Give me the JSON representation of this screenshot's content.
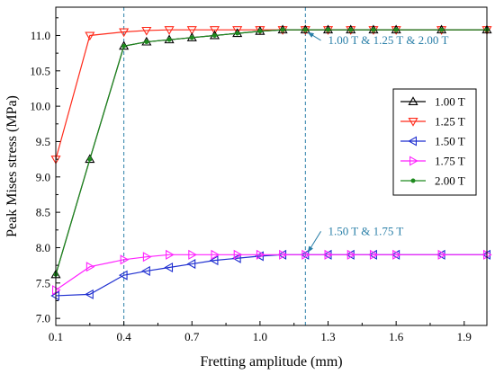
{
  "chart_data": {
    "type": "line",
    "xlabel": "Fretting amplitude (mm)",
    "ylabel": "Peak Mises stress (MPa)",
    "xlim": [
      0.1,
      2.0
    ],
    "ylim": [
      6.9,
      11.4
    ],
    "xticks": [
      0.1,
      0.4,
      0.7,
      1.0,
      1.3,
      1.6,
      1.9
    ],
    "yticks": [
      7.0,
      7.5,
      8.0,
      8.5,
      9.0,
      9.5,
      10.0,
      10.5,
      11.0
    ],
    "xtick_labels": [
      "0.1",
      "0.4",
      "0.7",
      "1.0",
      "1.3",
      "1.6",
      "1.9"
    ],
    "ytick_labels": [
      "7.0",
      "7.5",
      "8.0",
      "8.5",
      "9.0",
      "9.5",
      "10.0",
      "10.5",
      "11.0"
    ],
    "legend_position": "right",
    "grid": false,
    "series": [
      {
        "name": "1.00 T",
        "color": "#000000",
        "marker": "triangle-up",
        "x": [
          0.1,
          0.25,
          0.4,
          0.5,
          0.6,
          0.7,
          0.8,
          0.9,
          1.0,
          1.1,
          1.2,
          1.3,
          1.4,
          1.5,
          1.6,
          1.8,
          2.0
        ],
        "y": [
          7.62,
          9.25,
          10.85,
          10.91,
          10.94,
          10.97,
          11.0,
          11.03,
          11.06,
          11.08,
          11.08,
          11.08,
          11.08,
          11.08,
          11.08,
          11.08,
          11.08
        ]
      },
      {
        "name": "1.25 T",
        "color": "#ff2a1a",
        "marker": "triangle-down",
        "x": [
          0.1,
          0.25,
          0.4,
          0.5,
          0.6,
          0.7,
          0.8,
          0.9,
          1.0,
          1.1,
          1.2,
          1.3,
          1.4,
          1.5,
          1.6,
          1.8,
          2.0
        ],
        "y": [
          9.25,
          11.0,
          11.05,
          11.07,
          11.08,
          11.08,
          11.08,
          11.08,
          11.08,
          11.08,
          11.08,
          11.08,
          11.08,
          11.08,
          11.08,
          11.08,
          11.08
        ]
      },
      {
        "name": "1.50 T",
        "color": "#1f2fd0",
        "marker": "triangle-left",
        "x": [
          0.1,
          0.25,
          0.4,
          0.5,
          0.6,
          0.7,
          0.8,
          0.9,
          1.0,
          1.1,
          1.2,
          1.3,
          1.4,
          1.5,
          1.6,
          1.8,
          2.0
        ],
        "y": [
          7.32,
          7.34,
          7.61,
          7.67,
          7.72,
          7.77,
          7.82,
          7.85,
          7.88,
          7.9,
          7.9,
          7.9,
          7.9,
          7.9,
          7.9,
          7.9,
          7.9
        ]
      },
      {
        "name": "1.75 T",
        "color": "#ff22ff",
        "marker": "triangle-right",
        "x": [
          0.1,
          0.25,
          0.4,
          0.5,
          0.6,
          0.7,
          0.8,
          0.9,
          1.0,
          1.1,
          1.2,
          1.3,
          1.4,
          1.5,
          1.6,
          1.8,
          2.0
        ],
        "y": [
          7.4,
          7.73,
          7.83,
          7.87,
          7.9,
          7.9,
          7.9,
          7.9,
          7.9,
          7.9,
          7.9,
          7.9,
          7.9,
          7.9,
          7.9,
          7.9,
          7.9
        ]
      },
      {
        "name": "2.00 T",
        "color": "#1e8a1e",
        "marker": "dot",
        "x": [
          0.1,
          0.25,
          0.4,
          0.5,
          0.6,
          0.7,
          0.8,
          0.9,
          1.0,
          1.1,
          1.2,
          1.3,
          1.4,
          1.5,
          1.6,
          1.8,
          2.0
        ],
        "y": [
          7.62,
          9.25,
          10.85,
          10.91,
          10.94,
          10.97,
          11.0,
          11.03,
          11.06,
          11.08,
          11.08,
          11.08,
          11.08,
          11.08,
          11.08,
          11.08,
          11.08
        ]
      }
    ],
    "reference_lines": [
      {
        "axis": "x",
        "value": 0.4,
        "color": "#2a7fa8",
        "style": "dashed"
      },
      {
        "axis": "x",
        "value": 1.2,
        "color": "#2a7fa8",
        "style": "dashed"
      }
    ],
    "annotations": [
      {
        "text": "1.00 T & 1.25 T & 2.00 T",
        "arrow_to": [
          1.2,
          11.08
        ],
        "text_at": [
          1.3,
          10.88
        ],
        "color": "#2a7fa8"
      },
      {
        "text": "1.50 T & 1.75 T",
        "arrow_to": [
          1.2,
          7.9
        ],
        "text_at": [
          1.3,
          8.18
        ],
        "color": "#2a7fa8"
      }
    ]
  }
}
